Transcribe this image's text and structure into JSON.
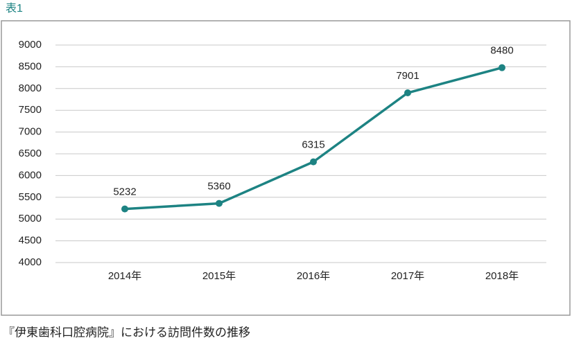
{
  "chart_data": {
    "type": "line",
    "label": "表1",
    "title": "『伊東歯科口腔病院』における訪問件数の推移",
    "categories": [
      "2014年",
      "2015年",
      "2016年",
      "2017年",
      "2018年"
    ],
    "values": [
      5232,
      5360,
      6315,
      7901,
      8480
    ],
    "color": "#1d8383",
    "ylim": [
      4000,
      9000
    ],
    "yticks": [
      4000,
      4500,
      5000,
      5500,
      6000,
      6500,
      7000,
      7500,
      8000,
      8500,
      9000
    ],
    "grid": true
  }
}
